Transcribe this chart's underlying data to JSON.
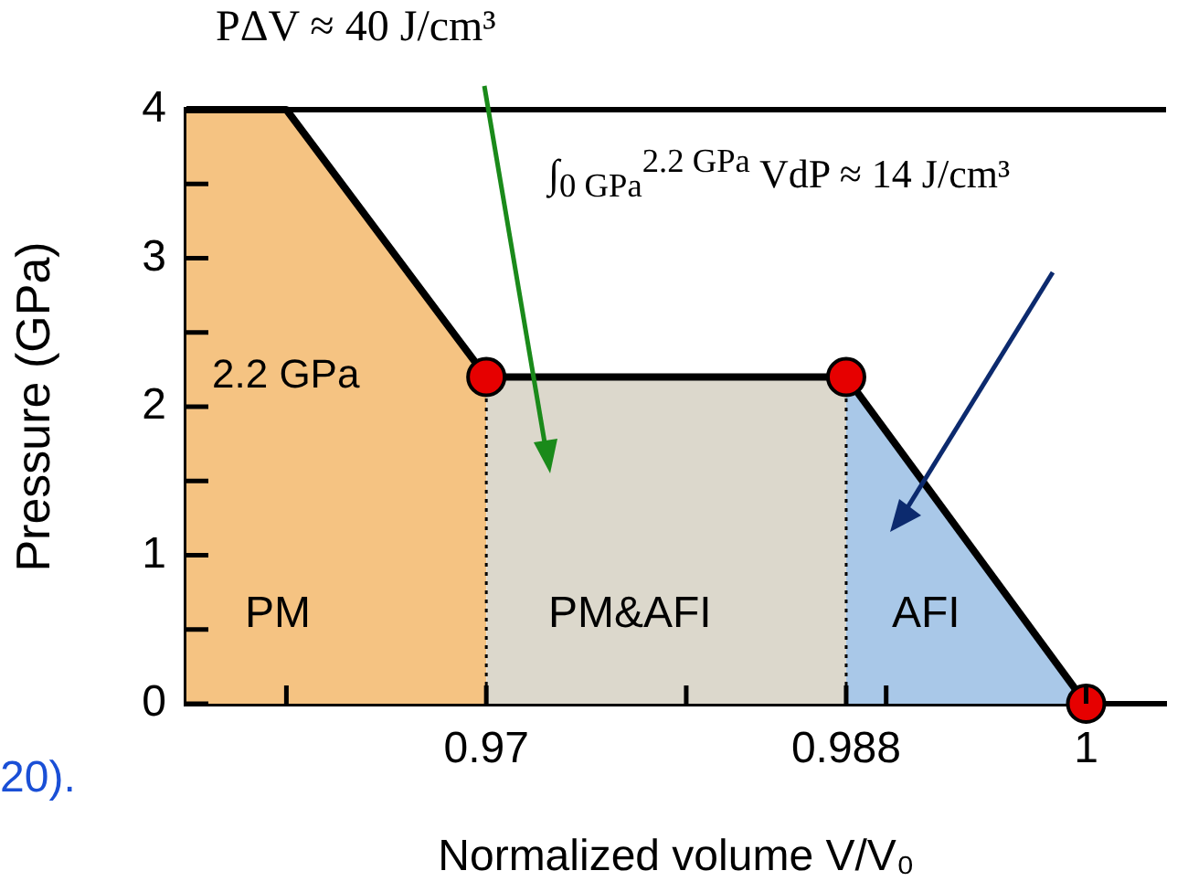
{
  "chart_data": {
    "type": "area",
    "xlabel": "Normalized volume V/V₀",
    "ylabel": "Pressure (GPa)",
    "xlim": [
      0.955,
      1.004
    ],
    "ylim": [
      0,
      4
    ],
    "xticks": [
      {
        "value": 0.96,
        "label": null
      },
      0.97,
      {
        "value": 0.98,
        "label": null
      },
      0.988,
      {
        "value": 0.99,
        "label": null
      },
      1
    ],
    "yticks": [
      0,
      {
        "value": 0.5,
        "label": null
      },
      1,
      {
        "value": 1.5,
        "label": null
      },
      2,
      {
        "value": 2.5,
        "label": null
      },
      3,
      {
        "value": 3.5,
        "label": null
      },
      4
    ],
    "grid": false,
    "legend": false,
    "series": [
      {
        "color": "#f5c382",
        "x": [
          0.955,
          0.96,
          0.97
        ],
        "values": [
          4,
          4,
          2.2
        ]
      },
      {
        "color": "#dcd8cc",
        "x": [
          0.97,
          0.988
        ],
        "values": [
          2.2,
          2.2
        ]
      },
      {
        "color": "#a9c8e8",
        "x": [
          0.988,
          1
        ],
        "values": [
          2.2,
          0
        ]
      },
      {
        "type": "line",
        "color": "#000000",
        "line_style": "dotted",
        "marker": "none",
        "x": [
          0.97,
          0.97
        ],
        "values": [
          0,
          2.2
        ]
      },
      {
        "type": "line",
        "color": "#000000",
        "line_style": "dotted",
        "marker": "none",
        "x": [
          0.988,
          0.988
        ],
        "values": [
          0,
          2.2
        ]
      },
      {
        "type": "scatter",
        "color": "#e60000",
        "marker": "circle",
        "x": [
          0.97,
          0.988,
          1
        ],
        "values": [
          2.2,
          2.2,
          0
        ]
      }
    ],
    "annotations": [
      "PΔV ≈ 40 J/cm³",
      "∫$_{0 GPa}$$^{2.2 GPa}$ VdP ≈ 14 J/cm³",
      "2.2 GPa",
      "PM",
      "PM&AFI",
      "AFI",
      "20)."
    ]
  }
}
